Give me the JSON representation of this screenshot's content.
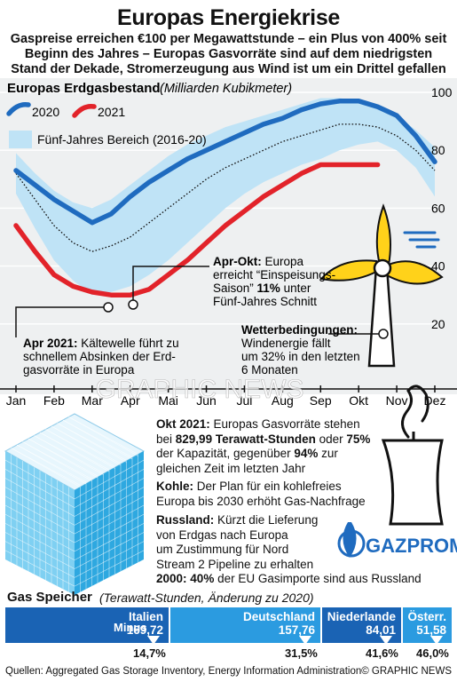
{
  "title": "Europas Energiekrise",
  "subtitle": "Gaspreise erreichen €100 per Megawattstunde – ein Plus von 400% seit Beginn des Jahres – Europas Gasvorräte sind auf dem niedrigsten Stand der Dekade, Stromerzeugung aus Wind ist um ein Drittel gefallen",
  "colors": {
    "blue": "#1f6bbf",
    "red": "#e2232a",
    "range": "#bfe3f6",
    "bar_dark": "#1a63b4",
    "bar_light": "#2b9be0"
  },
  "chart_data": [
    {
      "type": "line",
      "title": "Europas Erdgasbestand",
      "unit": "(Milliarden Kubikmeter)",
      "ylim": [
        0,
        100
      ],
      "yticks": [
        "100",
        "80",
        "60",
        "40",
        "20"
      ],
      "ytick_values": [
        100,
        80,
        60,
        40,
        20
      ],
      "categories": [
        "Jan",
        "Feb",
        "Mar",
        "Apr",
        "Mai",
        "Jun",
        "Jul",
        "Aug",
        "Sep",
        "Okt",
        "Nov",
        "Dez"
      ],
      "legend": {
        "s2020": "2020",
        "s2021": "2021",
        "range": "Fünf-Jahres Bereich (2016-20)"
      },
      "series": [
        {
          "name": "2020",
          "x": [
            0,
            0.5,
            1,
            1.5,
            2,
            2.5,
            3,
            3.5,
            4,
            4.5,
            5,
            5.5,
            6,
            6.5,
            7,
            7.5,
            8,
            8.5,
            9,
            9.5,
            10,
            10.5,
            11
          ],
          "values": [
            73,
            68,
            63,
            59,
            55,
            58,
            64,
            69,
            73,
            77,
            80,
            83,
            86,
            89,
            91,
            94,
            96,
            97,
            97,
            95,
            92,
            85,
            76
          ]
        },
        {
          "name": "2021",
          "x": [
            0,
            0.5,
            1,
            1.5,
            2,
            2.5,
            3,
            3.5,
            4,
            4.5,
            5,
            5.5,
            6,
            6.5,
            7,
            7.5,
            8,
            8.5,
            9,
            9.5
          ],
          "values": [
            54,
            45,
            37,
            33,
            31,
            30,
            30,
            32,
            37,
            42,
            48,
            54,
            59,
            64,
            68,
            72,
            75,
            75,
            75,
            75
          ]
        }
      ],
      "range_upper": [
        79,
        72,
        66,
        62,
        60,
        63,
        68,
        73,
        78,
        82,
        85,
        88,
        90,
        92,
        94,
        96,
        98,
        98,
        97,
        95,
        92,
        87,
        81
      ],
      "range_lower": [
        65,
        53,
        42,
        35,
        30,
        31,
        33,
        37,
        42,
        48,
        54,
        60,
        65,
        69,
        72,
        75,
        77,
        80,
        82,
        83,
        80,
        74,
        64
      ],
      "average": [
        72,
        63,
        54,
        48,
        45,
        47,
        50,
        55,
        60,
        65,
        70,
        74,
        77,
        80,
        83,
        85,
        87,
        89,
        89,
        88,
        85,
        80,
        73
      ]
    },
    {
      "type": "bar",
      "title": "Gas Speicher",
      "unit": "(Terawatt-Stunden, Änderung zu 2020)",
      "categories": [
        "Italien",
        "Deutschland",
        "Niederlande",
        "Österr."
      ],
      "values": [
        169.72,
        157.76,
        84.01,
        51.58
      ],
      "value_labels": [
        "169,72",
        "157,76",
        "84,01",
        "51,58"
      ],
      "changes": [
        "14,7%",
        "31,5%",
        "41,6%",
        "46,0%"
      ],
      "change_note": "Minus"
    }
  ],
  "notes": {
    "apr_okt_bold": "Apr-Okt:",
    "apr_okt_1": " Europa",
    "apr_okt_2": "erreicht “Einspeisungs-",
    "apr_okt_3a": "Saison” ",
    "apr_okt_3b": "11%",
    "apr_okt_3c": " unter",
    "apr_okt_4": "Fünf-Jahres Schnitt",
    "wetter_bold": "Wetterbedingungen:",
    "wetter_1": "Windenergie fällt",
    "wetter_2": "um 32% in den letzten",
    "wetter_3": "6 Monaten",
    "apr2021_bold": "Apr 2021:",
    "apr2021_1": " Kältewelle führt zu",
    "apr2021_2": "schnellem Absinken der Erd-",
    "apr2021_3": "gasvorräte in Europa",
    "okt_bold": "Okt 2021:",
    "okt_1": " Europas Gasvorräte stehen",
    "okt_2a": "bei ",
    "okt_2b": "829,99 Terawatt-Stunden",
    "okt_2c": " oder ",
    "okt_2d": "75%",
    "okt_3a": "der Kapazität, gegenüber ",
    "okt_3b": "94%",
    "okt_3c": " zur",
    "okt_4": "gleichen Zeit im letzten Jahr",
    "kohle_bold": "Kohle:",
    "kohle_1": " Der Plan für ein kohlefreies",
    "kohle_2": "Europa bis 2030 erhöht Gas-Nachfrage",
    "russ_bold": "Russland:",
    "russ_1": " Kürzt die Lieferung",
    "russ_2": "von Erdgas nach Europa",
    "russ_3": "um Zustimmung für Nord",
    "russ_4": "Stream 2 Pipeline zu erhalten",
    "y2000_bold": "2000:",
    "y2000_1": " ",
    "y2000_2": "40%",
    "y2000_3": " der EU Gasimporte sind aus Russland"
  },
  "gazprom_logo": "GAZPROM",
  "watermark": "GRAPHIC NEWS",
  "footer": {
    "source": "Quellen: Aggregated Gas Storage Inventory, Energy Information Administration",
    "copyright": "© GRAPHIC NEWS"
  }
}
